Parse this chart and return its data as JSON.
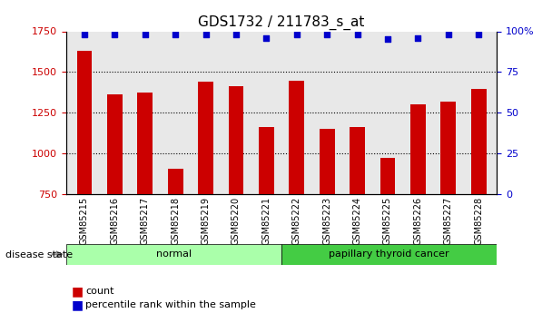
{
  "title": "GDS1732 / 211783_s_at",
  "categories": [
    "GSM85215",
    "GSM85216",
    "GSM85217",
    "GSM85218",
    "GSM85219",
    "GSM85220",
    "GSM85221",
    "GSM85222",
    "GSM85223",
    "GSM85224",
    "GSM85225",
    "GSM85226",
    "GSM85227",
    "GSM85228"
  ],
  "bar_values": [
    1630,
    1360,
    1375,
    905,
    1440,
    1415,
    1160,
    1445,
    1150,
    1160,
    970,
    1300,
    1320,
    1395
  ],
  "percentile_values": [
    98,
    98,
    98,
    98,
    98,
    98,
    96,
    98,
    98,
    98,
    95,
    96,
    98,
    98
  ],
  "bar_color": "#cc0000",
  "percentile_color": "#0000cc",
  "ylim_left": [
    750,
    1750
  ],
  "ylim_right": [
    0,
    100
  ],
  "yticks_left": [
    750,
    1000,
    1250,
    1500,
    1750
  ],
  "yticks_right": [
    0,
    25,
    50,
    75,
    100
  ],
  "ytick_labels_right": [
    "0",
    "25",
    "50",
    "75",
    "100%"
  ],
  "grid_values": [
    1000,
    1250,
    1500
  ],
  "normal_group": [
    "GSM85215",
    "GSM85216",
    "GSM85217",
    "GSM85218",
    "GSM85219",
    "GSM85220",
    "GSM85221"
  ],
  "cancer_group": [
    "GSM85222",
    "GSM85223",
    "GSM85224",
    "GSM85225",
    "GSM85226",
    "GSM85227",
    "GSM85228"
  ],
  "normal_label": "normal",
  "cancer_label": "papillary thyroid cancer",
  "disease_state_label": "disease state",
  "legend_count_label": "count",
  "legend_percentile_label": "percentile rank within the sample",
  "normal_color": "#aaffaa",
  "cancer_color": "#44cc44",
  "bar_width": 0.5,
  "tick_label_color_left": "#cc0000",
  "tick_label_color_right": "#0000cc",
  "background_color": "#ffffff",
  "plot_bg_color": "#e8e8e8"
}
